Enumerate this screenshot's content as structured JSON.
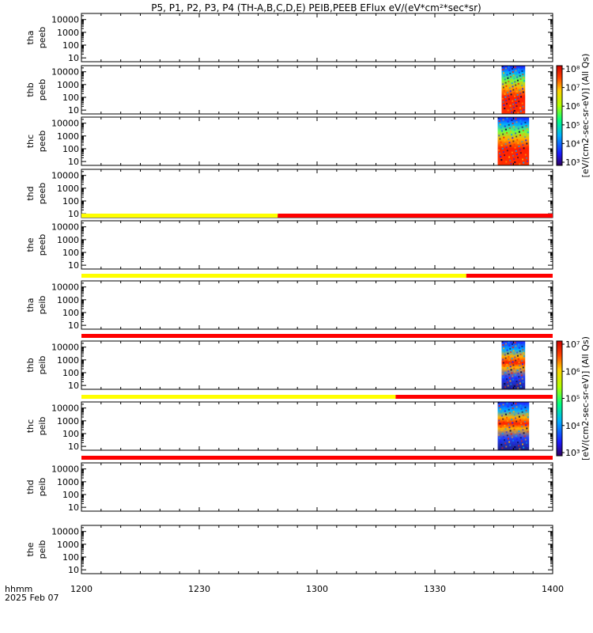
{
  "chart_data": {
    "type": "heatmap",
    "title": "P5, P1, P2, P3, P4 (TH-A,B,C,D,E) PEIB,PEEB EFlux eV/(eV*cm²*sec*sr)",
    "x_label_line1": "hhmm",
    "x_label_line2": "2025 Feb 07",
    "x_ticks": [
      "1200",
      "1230",
      "1300",
      "1330",
      "1400"
    ],
    "x_range_minutes": [
      0,
      120
    ],
    "y_ticks": [
      "10",
      "100",
      "1000",
      "10000"
    ],
    "y_scale": "log",
    "y_range": [
      5,
      30000
    ],
    "panels": [
      {
        "label_top": "tha",
        "label_bottom": "peeb",
        "has_data": false
      },
      {
        "label_top": "thb",
        "label_bottom": "peeb",
        "has_data": true,
        "data_start_min": 107,
        "data_end_min": 113,
        "peak_energy": [
          30,
          1000
        ]
      },
      {
        "label_top": "thc",
        "label_bottom": "peeb",
        "has_data": true,
        "data_start_min": 106,
        "data_end_min": 114,
        "peak_energy": [
          30,
          3000
        ]
      },
      {
        "label_top": "thd",
        "label_bottom": "peeb",
        "has_data": false
      },
      {
        "label_top": "the",
        "label_bottom": "peeb",
        "has_data": false,
        "bar": [
          {
            "color": "#ffff00",
            "start_min": 0,
            "end_min": 50
          },
          {
            "color": "#ff0000",
            "start_min": 50,
            "end_min": 120
          }
        ]
      },
      {
        "label_top": "tha",
        "label_bottom": "peib",
        "has_data": false,
        "bar": [
          {
            "color": "#ffff00",
            "start_min": 0,
            "end_min": 98
          },
          {
            "color": "#ff0000",
            "start_min": 98,
            "end_min": 120
          }
        ]
      },
      {
        "label_top": "thb",
        "label_bottom": "peib",
        "has_data": true,
        "data_start_min": 107,
        "data_end_min": 113,
        "peak_energy": [
          200,
          2000
        ],
        "bar": [
          {
            "color": "#ff0000",
            "start_min": 0,
            "end_min": 120
          }
        ]
      },
      {
        "label_top": "thc",
        "label_bottom": "peib",
        "has_data": true,
        "data_start_min": 106,
        "data_end_min": 114,
        "peak_energy": [
          300,
          1000
        ],
        "bar": [
          {
            "color": "#ffff00",
            "start_min": 0,
            "end_min": 80
          },
          {
            "color": "#ff0000",
            "start_min": 80,
            "end_min": 120
          }
        ]
      },
      {
        "label_top": "thd",
        "label_bottom": "peib",
        "has_data": false,
        "bar": [
          {
            "color": "#ff0000",
            "start_min": 0,
            "end_min": 120
          }
        ]
      },
      {
        "label_top": "the",
        "label_bottom": "peib",
        "has_data": false
      }
    ],
    "colorbars": [
      {
        "label": "[eV/(cm2-sec-sr-eV)]",
        "suffix": "(All Qs)",
        "ticks": [
          "10³",
          "10⁴",
          "10⁵",
          "10⁶",
          "10⁷",
          "10⁸"
        ]
      },
      {
        "label": "[eV/(cm2-sec-sr-eV)]",
        "suffix": "(All Qs)",
        "ticks": [
          "10³",
          "10⁴",
          "10⁵",
          "10⁶",
          "10⁷"
        ]
      }
    ]
  }
}
